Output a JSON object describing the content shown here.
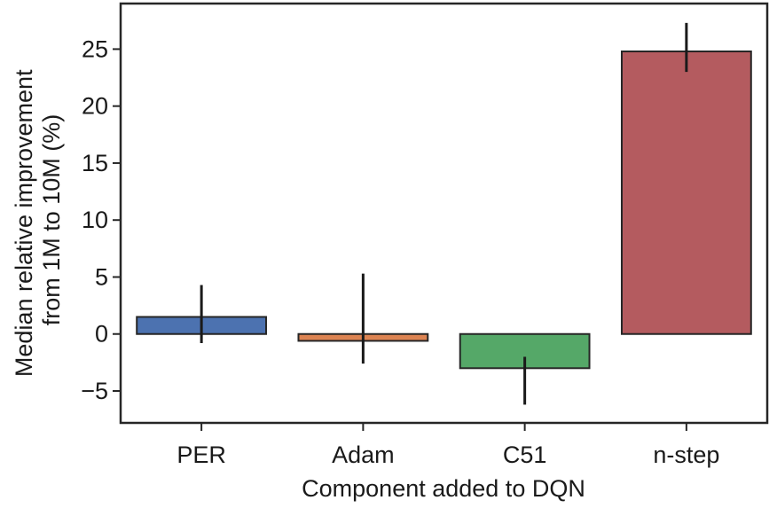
{
  "chart_data": {
    "type": "bar",
    "categories": [
      "PER",
      "Adam",
      "C51",
      "n-step"
    ],
    "values": [
      1.5,
      -0.6,
      -3.0,
      24.8
    ],
    "error_bars": [
      [
        -0.8,
        4.3
      ],
      [
        -2.6,
        5.3
      ],
      [
        -6.2,
        -2.0
      ],
      [
        23.0,
        27.3
      ]
    ],
    "colors": [
      "#4c72b0",
      "#dd8452",
      "#55a868",
      "#b45b5f"
    ],
    "xlabel": "Component added to DQN",
    "ylabel": [
      "Median relative improvement",
      "from 1M to 10M (%)"
    ],
    "ylim": [
      -7.8,
      29.0
    ],
    "yticks": [
      -5,
      0,
      5,
      10,
      15,
      20,
      25
    ],
    "ytick_labels": [
      "−5",
      "0",
      "5",
      "10",
      "15",
      "20",
      "25"
    ],
    "grid": false,
    "legend": "none"
  }
}
